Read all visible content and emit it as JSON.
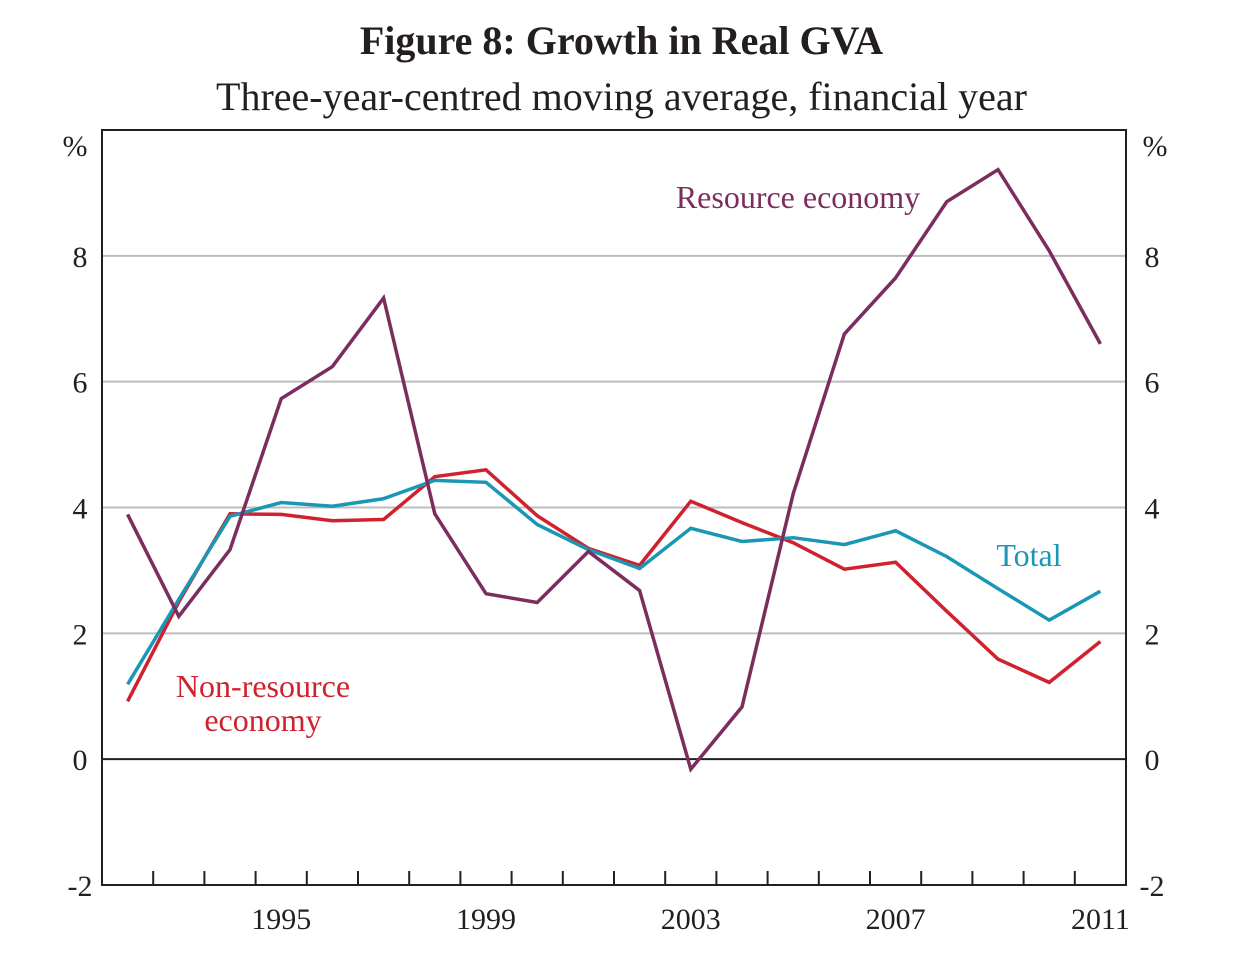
{
  "chart_data": {
    "type": "line",
    "title": "Figure 8: Growth in Real GVA",
    "subtitle": "Three-year-centred moving average, financial year",
    "xlabel": "",
    "ylabel_left": "%",
    "ylabel_right": "%",
    "ylim": [
      -2,
      10
    ],
    "yticks": [
      -2,
      0,
      2,
      4,
      6,
      8
    ],
    "ytick_labels": [
      "-2",
      "0",
      "2",
      "4",
      "6",
      "8"
    ],
    "x": [
      1992,
      1993,
      1994,
      1995,
      1996,
      1997,
      1998,
      1999,
      2000,
      2001,
      2002,
      2003,
      2004,
      2005,
      2006,
      2007,
      2008,
      2009,
      2010,
      2011
    ],
    "xtick_labels": [
      "1995",
      "1999",
      "2003",
      "2007",
      "2011"
    ],
    "grid": true,
    "series": [
      {
        "name": "Resource economy",
        "color": "#7b2d5e",
        "values": [
          3.89,
          2.27,
          3.33,
          5.73,
          6.24,
          7.33,
          3.9,
          2.63,
          2.49,
          3.3,
          2.68,
          -0.16,
          0.83,
          4.22,
          6.76,
          7.65,
          8.86,
          9.37,
          8.08,
          6.6
        ]
      },
      {
        "name": "Non-resource economy",
        "color": "#d0222e",
        "values": [
          0.92,
          2.5,
          3.9,
          3.89,
          3.79,
          3.81,
          4.49,
          4.6,
          3.87,
          3.35,
          3.08,
          4.1,
          3.76,
          3.44,
          3.02,
          3.13,
          2.35,
          1.59,
          1.22,
          1.87
        ]
      },
      {
        "name": "Total",
        "color": "#1a97b5",
        "values": [
          1.19,
          2.54,
          3.86,
          4.08,
          4.02,
          4.14,
          4.43,
          4.4,
          3.73,
          3.33,
          3.03,
          3.67,
          3.46,
          3.52,
          3.41,
          3.63,
          3.22,
          2.71,
          2.21,
          2.67
        ]
      }
    ],
    "annotations": [
      {
        "text": "Resource economy",
        "series": "Resource economy"
      },
      {
        "text": "Non-resource",
        "series": "Non-resource economy"
      },
      {
        "text": "economy",
        "series": "Non-resource economy"
      },
      {
        "text": "Total",
        "series": "Total"
      }
    ]
  }
}
